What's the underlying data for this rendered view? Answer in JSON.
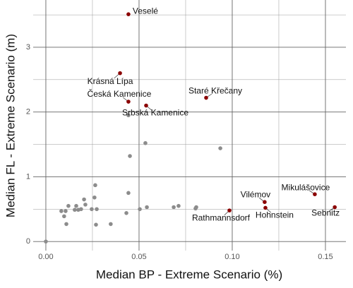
{
  "chart_data": {
    "type": "scatter",
    "x_label": "Median BP - Extreme Scenario (%)",
    "y_label": "Median FL - Extreme Scenario (m)",
    "xlim": [
      -0.0068,
      0.161
    ],
    "ylim": [
      -0.14,
      3.73
    ],
    "xticks": [
      {
        "value": 0,
        "label": "0.00"
      },
      {
        "value": 0.05,
        "label": "0.05"
      },
      {
        "value": 0.1,
        "label": "0.10"
      },
      {
        "value": 0.15,
        "label": "0.15"
      }
    ],
    "yticks": [
      0,
      1,
      2,
      3
    ],
    "xminor": [
      0.025,
      0.075,
      0.125
    ],
    "yminor": [
      0.5,
      1.5,
      2.5,
      3.5
    ],
    "grid": true,
    "series": [
      {
        "color": "#8c8c8c",
        "x": [
          0,
          0.0083,
          0.0106,
          0.0098,
          0.011,
          0.0121,
          0.0155,
          0.0163,
          0.0174,
          0.0189,
          0.0205,
          0.0212,
          0.0246,
          0.0261,
          0.0269,
          0.0273,
          0.0265,
          0.0348,
          0.0432,
          0.0443,
          0.0451,
          0.0443,
          0.0504,
          0.0534,
          0.0542,
          0.0686,
          0.0712,
          0.0803,
          0.0807,
          0.0936
        ],
        "values": [
          0,
          0.47,
          0.47,
          0.39,
          0.27,
          0.55,
          0.49,
          0.55,
          0.49,
          0.5,
          0.65,
          0.57,
          0.5,
          0.68,
          0.26,
          0.5,
          0.87,
          0.27,
          0.44,
          0.75,
          1.32,
          1.95,
          0.5,
          1.52,
          0.53,
          0.53,
          0.55,
          0.51,
          0.53,
          1.44
        ]
      },
      {
        "color": "#8b0000",
        "x": [
          0.0443,
          0.0398,
          0.0443,
          0.0538,
          0.086,
          0.0985,
          0.1174,
          0.1178,
          0.1443,
          0.155
        ],
        "values": [
          3.51,
          2.6,
          2.16,
          2.1,
          2.22,
          0.48,
          0.61,
          0.52,
          0.73,
          0.53
        ],
        "labels": [
          "Veselé",
          "Krásná Lípa",
          "Česká Kamenice",
          "Srbská Kamenice",
          "Staré Křečany",
          "Rathmannsdorf",
          "Vilémov",
          "Hohnstein",
          "Mikulášovice",
          "Sebnitz"
        ]
      }
    ]
  }
}
